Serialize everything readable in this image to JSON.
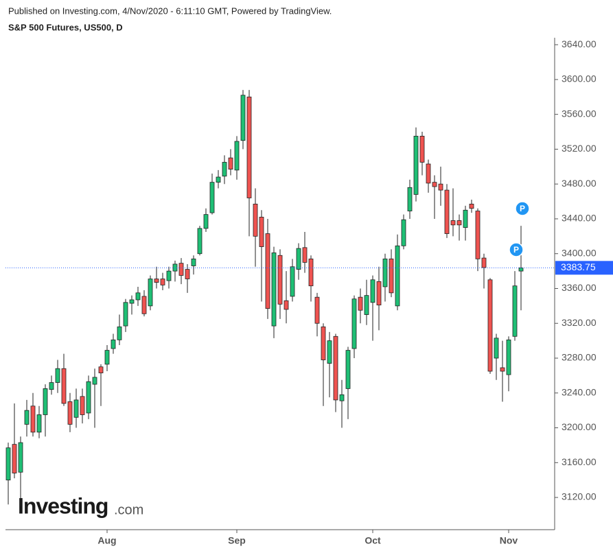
{
  "chart_data": {
    "type": "candlestick",
    "published": "Published on Investing.com, 4/Nov/2020 - 6:11:10 GMT, Powered by TradingView.",
    "title": "S&P 500 Futures, US500, D",
    "watermark": "Investing",
    "watermark_suffix": ".com",
    "annotations": [
      "P",
      "P"
    ],
    "categories": [
      null,
      null,
      null,
      null,
      null,
      null,
      null,
      null,
      null,
      null,
      null,
      null,
      null,
      null,
      null,
      null,
      "Aug",
      null,
      null,
      null,
      null,
      null,
      null,
      null,
      null,
      null,
      null,
      null,
      null,
      null,
      null,
      null,
      null,
      null,
      null,
      null,
      null,
      "Sep",
      null,
      null,
      null,
      null,
      null,
      null,
      null,
      null,
      null,
      null,
      null,
      null,
      null,
      null,
      null,
      null,
      null,
      null,
      null,
      null,
      null,
      "Oct",
      null,
      null,
      null,
      null,
      null,
      null,
      null,
      null,
      null,
      null,
      null,
      null,
      null,
      null,
      null,
      null,
      null,
      null,
      null,
      null,
      null,
      "Nov",
      null,
      null
    ],
    "open": [
      3140,
      3181,
      3149,
      3204,
      3225,
      3195,
      3215,
      3244,
      3252,
      3268,
      3230,
      3212,
      3236,
      3217,
      3250,
      3270,
      3273,
      3291,
      3301,
      3317,
      3343,
      3347,
      3351,
      3340,
      3371,
      3371,
      3369,
      3380,
      3389,
      3382,
      3386,
      3400,
      3429,
      3447,
      3482,
      3489,
      3510,
      3496,
      3530,
      3580,
      3457,
      3442,
      3423,
      3317,
      3398,
      3346,
      3351,
      3382,
      3407,
      3394,
      3350,
      3316,
      3274,
      3305,
      3231,
      3245,
      3291,
      3350,
      3330,
      3344,
      3368,
      3362,
      3394,
      3340,
      3409,
      3449,
      3468,
      3535,
      3503,
      3482,
      3480,
      3473,
      3438,
      3438,
      3430,
      3457,
      3449,
      3395,
      3370,
      3280,
      3269,
      3261,
      3305,
      3380
    ],
    "high": [
      3183,
      3228,
      3190,
      3232,
      3240,
      3225,
      3250,
      3260,
      3278,
      3285,
      3240,
      3245,
      3245,
      3260,
      3268,
      3273,
      3295,
      3308,
      3330,
      3348,
      3352,
      3362,
      3358,
      3375,
      3385,
      3378,
      3385,
      3392,
      3395,
      3388,
      3398,
      3432,
      3452,
      3492,
      3496,
      3513,
      3520,
      3535,
      3588,
      3588,
      3475,
      3450,
      3440,
      3408,
      3405,
      3380,
      3394,
      3412,
      3425,
      3398,
      3355,
      3320,
      3310,
      3308,
      3255,
      3293,
      3352,
      3360,
      3370,
      3375,
      3385,
      3400,
      3405,
      3422,
      3445,
      3485,
      3545,
      3540,
      3508,
      3490,
      3500,
      3480,
      3475,
      3445,
      3455,
      3462,
      3452,
      3400,
      3372,
      3308,
      3300,
      3305,
      3380,
      3432
    ],
    "low": [
      3112,
      3142,
      3110,
      3190,
      3190,
      3188,
      3190,
      3238,
      3240,
      3225,
      3195,
      3200,
      3205,
      3210,
      3200,
      3225,
      3265,
      3285,
      3295,
      3310,
      3330,
      3340,
      3328,
      3335,
      3360,
      3358,
      3360,
      3368,
      3365,
      3355,
      3376,
      3398,
      3425,
      3445,
      3475,
      3480,
      3490,
      3485,
      3520,
      3420,
      3385,
      3345,
      3325,
      3303,
      3325,
      3320,
      3345,
      3370,
      3378,
      3345,
      3305,
      3225,
      3235,
      3218,
      3200,
      3210,
      3280,
      3320,
      3318,
      3300,
      3312,
      3345,
      3350,
      3335,
      3405,
      3440,
      3460,
      3490,
      3470,
      3440,
      3455,
      3418,
      3420,
      3415,
      3415,
      3447,
      3380,
      3360,
      3262,
      3255,
      3230,
      3242,
      3300,
      3335
    ],
    "close": [
      3177,
      3148,
      3183,
      3220,
      3195,
      3215,
      3245,
      3252,
      3268,
      3228,
      3204,
      3232,
      3215,
      3253,
      3258,
      3263,
      3289,
      3301,
      3316,
      3344,
      3347,
      3355,
      3331,
      3371,
      3367,
      3364,
      3380,
      3388,
      3375,
      3371,
      3394,
      3429,
      3445,
      3482,
      3488,
      3505,
      3497,
      3529,
      3582,
      3464,
      3420,
      3408,
      3337,
      3401,
      3342,
      3336,
      3385,
      3406,
      3390,
      3363,
      3320,
      3278,
      3300,
      3232,
      3238,
      3289,
      3348,
      3335,
      3352,
      3370,
      3341,
      3394,
      3355,
      3409,
      3439,
      3476,
      3535,
      3505,
      3481,
      3477,
      3473,
      3423,
      3433,
      3433,
      3450,
      3452,
      3394,
      3384,
      3265,
      3303,
      3265,
      3301,
      3363,
      3383.75
    ],
    "up_color": "#1fbf75",
    "down_color": "#ef5350",
    "wick_color": "#222222",
    "last_price": 3383.75,
    "last_price_color": "#2962ff",
    "ylim": [
      3083,
      3648
    ],
    "yticks": [
      {
        "value": 3120,
        "label": "3120.00"
      },
      {
        "value": 3160,
        "label": "3160.00"
      },
      {
        "value": 3200,
        "label": "3200.00"
      },
      {
        "value": 3240,
        "label": "3240.00"
      },
      {
        "value": 3280,
        "label": "3280.00"
      },
      {
        "value": 3320,
        "label": "3320.00"
      },
      {
        "value": 3360,
        "label": "3360.00"
      },
      {
        "value": 3400,
        "label": "3400.00"
      },
      {
        "value": 3440,
        "label": "3440.00"
      },
      {
        "value": 3480,
        "label": "3480.00"
      },
      {
        "value": 3520,
        "label": "3520.00"
      },
      {
        "value": 3560,
        "label": "3560.00"
      },
      {
        "value": 3600,
        "label": "3600.00"
      },
      {
        "value": 3640,
        "label": "3640.00"
      }
    ],
    "grid": false
  }
}
